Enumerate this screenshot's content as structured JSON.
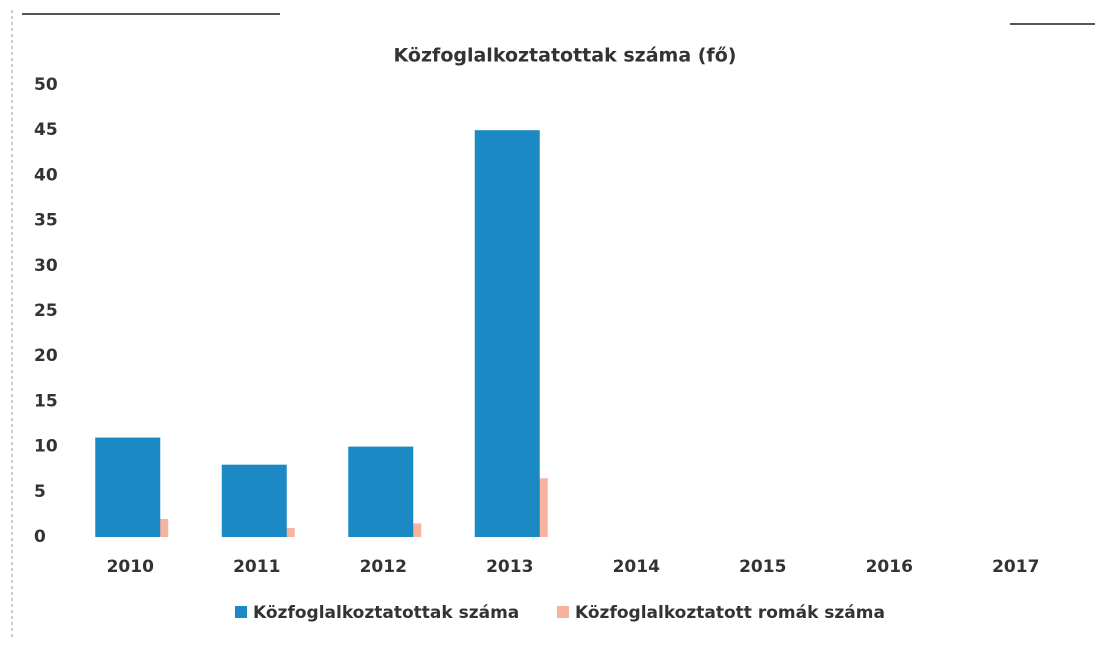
{
  "chart_data": {
    "type": "bar",
    "title": "Közfoglalkoztatottak száma (fő)",
    "categories": [
      "2010",
      "2011",
      "2012",
      "2013",
      "2014",
      "2015",
      "2016",
      "2017"
    ],
    "series": [
      {
        "name": "Közfoglalkoztatottak száma",
        "color": "#1b8ac4",
        "values": [
          11,
          8,
          10,
          45,
          null,
          null,
          null,
          null
        ]
      },
      {
        "name": "Közfoglalkoztatott romák száma",
        "color": "#f5b3a0",
        "values": [
          2,
          1,
          1.5,
          6.5,
          null,
          null,
          null,
          null
        ]
      }
    ],
    "ylim": [
      0,
      50
    ],
    "yticks": [
      0,
      5,
      10,
      15,
      20,
      25,
      30,
      35,
      40,
      45,
      50
    ],
    "grid": false,
    "legend": "bottom"
  }
}
